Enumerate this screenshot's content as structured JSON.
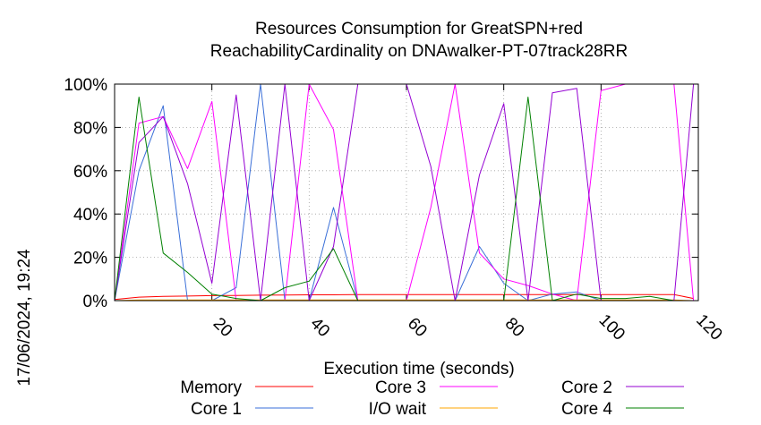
{
  "chart_data": {
    "type": "line",
    "title": [
      "Resources Consumption for GreatSPN+red",
      "ReachabilityCardinality on DNAwalker-PT-07track28RR"
    ],
    "xlabel": "Execution time (seconds)",
    "ylabel": "",
    "side_label": "17/06/2024, 19:24",
    "xlim": [
      0,
      120
    ],
    "ylim": [
      0,
      100
    ],
    "x_ticks": [
      20,
      40,
      60,
      80,
      100,
      120
    ],
    "y_ticks": [
      0,
      20,
      40,
      60,
      80,
      100
    ],
    "y_tick_labels": [
      "0%",
      "20%",
      "40%",
      "60%",
      "80%",
      "100%"
    ],
    "grid": true,
    "legend_position": "bottom",
    "series": [
      {
        "name": "Memory",
        "color": "#ff0000",
        "x": [
          0,
          5,
          10,
          15,
          20,
          25,
          30,
          35,
          40,
          45,
          50,
          55,
          60,
          65,
          70,
          75,
          80,
          85,
          90,
          95,
          100,
          105,
          110,
          115,
          119
        ],
        "y": [
          0.5,
          1.6,
          2.0,
          2.1,
          2.3,
          2.4,
          2.5,
          2.6,
          2.7,
          2.7,
          2.8,
          2.8,
          2.8,
          2.8,
          2.8,
          2.8,
          2.8,
          2.8,
          2.8,
          2.8,
          2.8,
          2.8,
          2.8,
          2.8,
          1.0
        ]
      },
      {
        "name": "Core 1",
        "color": "#3a6fd8",
        "x": [
          0,
          5,
          10,
          15,
          20,
          25,
          30,
          35,
          40,
          45,
          50,
          55,
          60,
          65,
          70,
          75,
          80,
          85,
          90,
          95,
          100,
          105,
          110,
          115,
          119
        ],
        "y": [
          0,
          60,
          90,
          0,
          0,
          6,
          100,
          0,
          0,
          43,
          0,
          0,
          0,
          0,
          0,
          25,
          8,
          0,
          3,
          4,
          0,
          0,
          0,
          0,
          0
        ]
      },
      {
        "name": "Core 3",
        "color": "#ff00ff",
        "x": [
          0,
          5,
          10,
          15,
          20,
          25,
          30,
          35,
          40,
          45,
          50,
          55,
          60,
          65,
          70,
          75,
          80,
          85,
          90,
          95,
          100,
          105,
          110,
          115,
          119
        ],
        "y": [
          0,
          82,
          85,
          61,
          92,
          0,
          0,
          0,
          100,
          79,
          0,
          0,
          0,
          43,
          100,
          22,
          10,
          7,
          3,
          0,
          97,
          100,
          100,
          100,
          0
        ]
      },
      {
        "name": "I/O wait",
        "color": "#ffa500",
        "x": [
          0,
          5,
          10,
          15,
          20,
          25,
          30,
          35,
          40,
          45,
          50,
          55,
          60,
          65,
          70,
          75,
          80,
          85,
          90,
          95,
          100,
          105,
          110,
          115,
          119
        ],
        "y": [
          0,
          0.3,
          0.3,
          0.3,
          0.3,
          0.3,
          0.3,
          0.3,
          0.3,
          0.3,
          0.3,
          0.3,
          0.3,
          0.3,
          0.3,
          0.3,
          0.3,
          0.3,
          0.3,
          0.3,
          0.3,
          0.3,
          0.3,
          0.3,
          0
        ]
      },
      {
        "name": "Core 2",
        "color": "#9400d3",
        "x": [
          0,
          5,
          10,
          15,
          20,
          25,
          30,
          35,
          40,
          45,
          50,
          55,
          60,
          65,
          70,
          75,
          80,
          85,
          90,
          95,
          100,
          105,
          110,
          115,
          119
        ],
        "y": [
          0,
          73,
          85,
          54,
          8,
          95,
          0,
          100,
          0,
          25,
          100,
          100,
          100,
          62,
          0,
          58,
          91,
          0,
          96,
          98,
          0,
          0,
          0,
          0,
          100
        ]
      },
      {
        "name": "Core 4",
        "color": "#008000",
        "x": [
          0,
          5,
          10,
          15,
          20,
          25,
          30,
          35,
          40,
          45,
          50,
          55,
          60,
          65,
          70,
          75,
          80,
          85,
          90,
          95,
          100,
          105,
          110,
          115,
          119
        ],
        "y": [
          0,
          94,
          22,
          13,
          3,
          1,
          0,
          6,
          9,
          24,
          0,
          0,
          0,
          0,
          0,
          0,
          0,
          94,
          0,
          3,
          1,
          1,
          2,
          0,
          0
        ]
      }
    ]
  }
}
